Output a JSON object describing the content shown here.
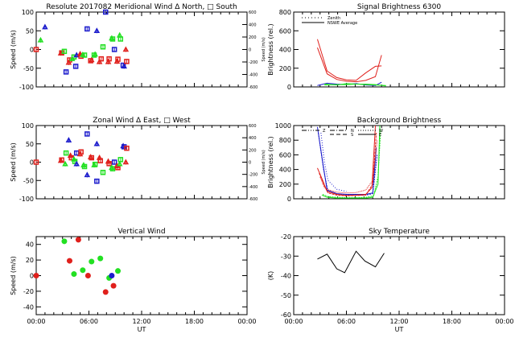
{
  "colors": {
    "red": "#e0201c",
    "green": "#22e022",
    "blue": "#1c1ccc",
    "black": "#000000"
  },
  "chart_data": [
    {
      "id": "meridional",
      "type": "scatter",
      "title": "Resolute   2017082     Meridional Wind   Δ North, □ South",
      "xlabel": "",
      "ylabel": "Speed (m/s)",
      "ylabel_right": "Speed (m/s)",
      "xlim": [
        0,
        24
      ],
      "ylim": [
        -100,
        100
      ],
      "yticks": [
        "100",
        "50",
        "0",
        "-50",
        "-100"
      ],
      "yticks_right": [
        "600",
        "400",
        "200",
        "0",
        "-200",
        "-400",
        "-600"
      ],
      "points": [
        {
          "x": 0.0,
          "y": 0,
          "c": "red",
          "m": "sq"
        },
        {
          "x": 1.0,
          "y": 60,
          "c": "blue",
          "m": "tri"
        },
        {
          "x": 0.5,
          "y": 25,
          "c": "green",
          "m": "tri"
        },
        {
          "x": 2.8,
          "y": -10,
          "c": "red",
          "m": "tri"
        },
        {
          "x": 2.9,
          "y": -9,
          "c": "red",
          "m": "sq"
        },
        {
          "x": 3.2,
          "y": -5,
          "c": "green",
          "m": "sq"
        },
        {
          "x": 3.4,
          "y": -60,
          "c": "blue",
          "m": "sq"
        },
        {
          "x": 3.7,
          "y": -35,
          "c": "red",
          "m": "tri"
        },
        {
          "x": 3.8,
          "y": -28,
          "c": "red",
          "m": "sq"
        },
        {
          "x": 4.1,
          "y": -25,
          "c": "green",
          "m": "tri"
        },
        {
          "x": 4.3,
          "y": -20,
          "c": "green",
          "m": "sq"
        },
        {
          "x": 4.5,
          "y": -45,
          "c": "blue",
          "m": "sq"
        },
        {
          "x": 4.6,
          "y": -15,
          "c": "blue",
          "m": "tri"
        },
        {
          "x": 5.0,
          "y": -12,
          "c": "red",
          "m": "tri"
        },
        {
          "x": 5.1,
          "y": -18,
          "c": "red",
          "m": "sq"
        },
        {
          "x": 5.3,
          "y": -14,
          "c": "green",
          "m": "tri"
        },
        {
          "x": 5.5,
          "y": -15,
          "c": "green",
          "m": "sq"
        },
        {
          "x": 5.8,
          "y": 55,
          "c": "blue",
          "m": "sq"
        },
        {
          "x": 6.2,
          "y": -30,
          "c": "red",
          "m": "sq"
        },
        {
          "x": 6.3,
          "y": -28,
          "c": "red",
          "m": "tri"
        },
        {
          "x": 6.6,
          "y": -15,
          "c": "green",
          "m": "sq"
        },
        {
          "x": 6.7,
          "y": -13,
          "c": "green",
          "m": "tri"
        },
        {
          "x": 6.9,
          "y": 50,
          "c": "blue",
          "m": "tri"
        },
        {
          "x": 7.2,
          "y": -33,
          "c": "red",
          "m": "tri"
        },
        {
          "x": 7.4,
          "y": -25,
          "c": "red",
          "m": "sq"
        },
        {
          "x": 7.6,
          "y": 7,
          "c": "green",
          "m": "sq"
        },
        {
          "x": 7.9,
          "y": 100,
          "c": "blue",
          "m": "sq"
        },
        {
          "x": 8.2,
          "y": -33,
          "c": "red",
          "m": "tri"
        },
        {
          "x": 8.3,
          "y": -25,
          "c": "red",
          "m": "sq"
        },
        {
          "x": 8.6,
          "y": 30,
          "c": "green",
          "m": "tri"
        },
        {
          "x": 8.7,
          "y": 28,
          "c": "green",
          "m": "sq"
        },
        {
          "x": 8.9,
          "y": 0,
          "c": "blue",
          "m": "sq"
        },
        {
          "x": 9.2,
          "y": -32,
          "c": "red",
          "m": "tri"
        },
        {
          "x": 9.3,
          "y": -26,
          "c": "red",
          "m": "sq"
        },
        {
          "x": 9.5,
          "y": 38,
          "c": "green",
          "m": "tri"
        },
        {
          "x": 9.6,
          "y": 28,
          "c": "green",
          "m": "sq"
        },
        {
          "x": 9.9,
          "y": -42,
          "c": "blue",
          "m": "sq"
        },
        {
          "x": 10.0,
          "y": -45,
          "c": "blue",
          "m": "tri"
        },
        {
          "x": 10.2,
          "y": 0,
          "c": "red",
          "m": "tri"
        },
        {
          "x": 10.3,
          "y": -32,
          "c": "red",
          "m": "sq"
        }
      ]
    },
    {
      "id": "signal",
      "type": "line",
      "title": "Signal Brightness      6300",
      "ylabel": "Brightness (rel.)",
      "xlim": [
        0,
        24
      ],
      "ylim": [
        0,
        800
      ],
      "yticks": [
        "800",
        "600",
        "400",
        "200",
        "0"
      ],
      "legend": [
        "Zenith",
        "NSWE Average"
      ],
      "legend_position": "top-left",
      "series": [
        {
          "name": "red-1",
          "c": "red",
          "x": [
            2.7,
            3.8,
            4.9,
            6.0,
            7.1,
            8.2,
            9.3,
            10.0
          ],
          "y": [
            510,
            170,
            100,
            75,
            70,
            150,
            220,
            225
          ]
        },
        {
          "name": "red-2",
          "c": "red",
          "x": [
            2.7,
            3.8,
            4.9,
            6.0,
            7.1,
            8.2,
            9.3,
            10.0
          ],
          "y": [
            420,
            140,
            80,
            60,
            55,
            70,
            110,
            340
          ]
        },
        {
          "name": "blue",
          "c": "blue",
          "x": [
            2.7,
            3.8,
            4.9,
            6.0,
            7.1,
            8.2,
            9.3,
            10.0
          ],
          "y": [
            15,
            40,
            30,
            25,
            35,
            20,
            15,
            50
          ]
        },
        {
          "name": "green-1",
          "c": "green",
          "x": [
            3.5,
            4.9,
            6.0,
            7.1,
            8.2,
            9.3,
            10.5
          ],
          "y": [
            30,
            20,
            35,
            30,
            25,
            20,
            15
          ]
        },
        {
          "name": "green-2",
          "c": "green",
          "x": [
            3.5,
            4.9,
            6.0,
            7.1,
            8.2,
            9.3,
            10.5
          ],
          "y": [
            20,
            25,
            25,
            30,
            30,
            25,
            10
          ]
        }
      ]
    },
    {
      "id": "zonal",
      "type": "scatter",
      "title": "Zonal Wind      Δ East, □ West",
      "ylabel": "Speed (m/s)",
      "ylabel_right": "Speed (m/s)",
      "xlim": [
        0,
        24
      ],
      "ylim": [
        -100,
        100
      ],
      "yticks": [
        "100",
        "50",
        "0",
        "-50",
        "-100"
      ],
      "yticks_right": [
        "600",
        "400",
        "200",
        "0",
        "-200",
        "-400",
        "-600"
      ],
      "points": [
        {
          "x": 0.0,
          "y": 0,
          "c": "red",
          "m": "sq"
        },
        {
          "x": 2.8,
          "y": 4,
          "c": "red",
          "m": "tri"
        },
        {
          "x": 2.9,
          "y": 6,
          "c": "red",
          "m": "sq"
        },
        {
          "x": 3.3,
          "y": -5,
          "c": "green",
          "m": "tri"
        },
        {
          "x": 3.4,
          "y": 25,
          "c": "green",
          "m": "sq"
        },
        {
          "x": 3.7,
          "y": 60,
          "c": "blue",
          "m": "tri"
        },
        {
          "x": 3.9,
          "y": 18,
          "c": "red",
          "m": "tri"
        },
        {
          "x": 4.0,
          "y": 12,
          "c": "red",
          "m": "sq"
        },
        {
          "x": 4.3,
          "y": 8,
          "c": "green",
          "m": "tri"
        },
        {
          "x": 4.4,
          "y": 2,
          "c": "green",
          "m": "sq"
        },
        {
          "x": 4.6,
          "y": -5,
          "c": "blue",
          "m": "tri"
        },
        {
          "x": 4.6,
          "y": 25,
          "c": "blue",
          "m": "sq"
        },
        {
          "x": 5.0,
          "y": 22,
          "c": "red",
          "m": "tri"
        },
        {
          "x": 5.1,
          "y": 28,
          "c": "red",
          "m": "sq"
        },
        {
          "x": 5.4,
          "y": -8,
          "c": "green",
          "m": "tri"
        },
        {
          "x": 5.5,
          "y": -12,
          "c": "green",
          "m": "sq"
        },
        {
          "x": 5.8,
          "y": -35,
          "c": "blue",
          "m": "tri"
        },
        {
          "x": 5.8,
          "y": 77,
          "c": "blue",
          "m": "sq"
        },
        {
          "x": 6.2,
          "y": 14,
          "c": "red",
          "m": "tri"
        },
        {
          "x": 6.3,
          "y": 12,
          "c": "red",
          "m": "sq"
        },
        {
          "x": 6.6,
          "y": -8,
          "c": "green",
          "m": "tri"
        },
        {
          "x": 6.7,
          "y": -6,
          "c": "green",
          "m": "sq"
        },
        {
          "x": 6.9,
          "y": 50,
          "c": "blue",
          "m": "tri"
        },
        {
          "x": 6.9,
          "y": -52,
          "c": "blue",
          "m": "sq"
        },
        {
          "x": 7.2,
          "y": 12,
          "c": "red",
          "m": "tri"
        },
        {
          "x": 7.3,
          "y": 4,
          "c": "red",
          "m": "sq"
        },
        {
          "x": 7.6,
          "y": -28,
          "c": "green",
          "m": "sq"
        },
        {
          "x": 8.2,
          "y": 2,
          "c": "red",
          "m": "tri"
        },
        {
          "x": 8.3,
          "y": -4,
          "c": "red",
          "m": "sq"
        },
        {
          "x": 8.6,
          "y": -15,
          "c": "green",
          "m": "tri"
        },
        {
          "x": 8.7,
          "y": -18,
          "c": "green",
          "m": "sq"
        },
        {
          "x": 8.9,
          "y": 0,
          "c": "blue",
          "m": "sq"
        },
        {
          "x": 9.2,
          "y": -10,
          "c": "red",
          "m": "tri"
        },
        {
          "x": 9.3,
          "y": -15,
          "c": "red",
          "m": "sq"
        },
        {
          "x": 9.5,
          "y": -5,
          "c": "green",
          "m": "tri"
        },
        {
          "x": 9.6,
          "y": 7,
          "c": "green",
          "m": "sq"
        },
        {
          "x": 9.9,
          "y": 44,
          "c": "blue",
          "m": "tri"
        },
        {
          "x": 10.0,
          "y": 42,
          "c": "blue",
          "m": "sq"
        },
        {
          "x": 10.2,
          "y": 0,
          "c": "red",
          "m": "tri"
        },
        {
          "x": 10.3,
          "y": 38,
          "c": "red",
          "m": "sq"
        }
      ]
    },
    {
      "id": "background",
      "type": "line",
      "title": "Background Brightness",
      "ylabel": "Brightness (rel.)",
      "xlim": [
        0,
        24
      ],
      "ylim": [
        0,
        1000
      ],
      "yticks": [
        "1000",
        "800",
        "600",
        "400",
        "200",
        "0"
      ],
      "legend": [
        "Z",
        "N",
        "W",
        "S",
        "E"
      ],
      "legend_position": "top",
      "series": [
        {
          "name": "blue-1",
          "c": "blue",
          "dash": "",
          "x": [
            2.7,
            3.3,
            3.8,
            4.9,
            6.0,
            7.1,
            8.2,
            9.0,
            9.4
          ],
          "y": [
            980,
            500,
            120,
            70,
            60,
            60,
            60,
            80,
            700
          ]
        },
        {
          "name": "blue-2",
          "c": "blue",
          "dash": "2,1",
          "x": [
            2.8,
            3.4,
            3.9,
            4.9,
            6.0,
            7.1,
            8.2,
            9.0,
            9.5
          ],
          "y": [
            900,
            400,
            100,
            60,
            50,
            50,
            50,
            70,
            600
          ]
        },
        {
          "name": "red-1",
          "c": "red",
          "dash": "",
          "x": [
            2.7,
            3.3,
            3.8,
            4.9,
            6.0,
            7.1,
            8.2,
            8.9,
            9.3
          ],
          "y": [
            420,
            250,
            100,
            60,
            45,
            50,
            60,
            150,
            1000
          ]
        },
        {
          "name": "red-2",
          "c": "red",
          "dash": "3,1",
          "x": [
            2.9,
            3.4,
            3.9,
            4.9,
            6.0,
            7.1,
            8.2,
            9.0,
            9.4
          ],
          "y": [
            350,
            200,
            80,
            50,
            40,
            45,
            50,
            200,
            900
          ]
        },
        {
          "name": "red-3",
          "c": "red",
          "dash": "1,1",
          "x": [
            3.0,
            3.5,
            4.0,
            4.9,
            6.0,
            7.1,
            8.2,
            9.0,
            9.5
          ],
          "y": [
            300,
            150,
            120,
            90,
            80,
            85,
            120,
            250,
            800
          ]
        },
        {
          "name": "green-1",
          "c": "green",
          "dash": "",
          "x": [
            3.2,
            3.8,
            4.9,
            6.0,
            7.1,
            8.2,
            9.0,
            9.6,
            9.8
          ],
          "y": [
            50,
            20,
            10,
            10,
            10,
            10,
            20,
            200,
            1000
          ]
        },
        {
          "name": "green-2",
          "c": "green",
          "dash": "2,1",
          "x": [
            3.3,
            3.9,
            4.9,
            6.0,
            7.1,
            8.2,
            9.1,
            9.6,
            9.9
          ],
          "y": [
            60,
            30,
            20,
            15,
            15,
            20,
            40,
            300,
            950
          ]
        },
        {
          "name": "black-dot",
          "c": "blue",
          "dash": "1,2",
          "x": [
            3.1,
            3.5,
            3.9,
            4.9,
            6.0
          ],
          "y": [
            900,
            500,
            250,
            130,
            100
          ]
        }
      ]
    },
    {
      "id": "vertical",
      "type": "scatter",
      "title": "Vertical Wind",
      "xlabel": "UT",
      "ylabel": "Speed (m/s)",
      "xlim": [
        0,
        24
      ],
      "ylim": [
        -50,
        50
      ],
      "yticks": [
        "40",
        "20",
        "0",
        "-20",
        "-40"
      ],
      "xticks": [
        "00:00",
        "06:00",
        "12:00",
        "18:00",
        "00:00"
      ],
      "points": [
        {
          "x": 0.0,
          "y": 0,
          "c": "red"
        },
        {
          "x": 3.2,
          "y": 44,
          "c": "green"
        },
        {
          "x": 3.8,
          "y": 19,
          "c": "red"
        },
        {
          "x": 4.3,
          "y": 2,
          "c": "green"
        },
        {
          "x": 4.8,
          "y": 46,
          "c": "red"
        },
        {
          "x": 5.3,
          "y": 7,
          "c": "green"
        },
        {
          "x": 5.9,
          "y": 0,
          "c": "red"
        },
        {
          "x": 6.3,
          "y": 18,
          "c": "green"
        },
        {
          "x": 7.3,
          "y": 22,
          "c": "green"
        },
        {
          "x": 7.9,
          "y": -21,
          "c": "red"
        },
        {
          "x": 8.3,
          "y": -3,
          "c": "green"
        },
        {
          "x": 8.6,
          "y": 0,
          "c": "blue"
        },
        {
          "x": 8.8,
          "y": -13,
          "c": "red"
        },
        {
          "x": 9.3,
          "y": 6,
          "c": "green"
        }
      ]
    },
    {
      "id": "skytemp",
      "type": "line",
      "title": "Sky Temperature",
      "xlabel": "UT",
      "ylabel": "(K)",
      "xlim": [
        0,
        24
      ],
      "ylim": [
        -60,
        -20
      ],
      "yticks": [
        "-20",
        "-30",
        "-40",
        "-50",
        "-60"
      ],
      "xticks": [
        "00:00",
        "06:00",
        "12:00",
        "18:00",
        "00:00"
      ],
      "series": [
        {
          "name": "sky",
          "c": "black",
          "x": [
            2.7,
            3.8,
            4.9,
            5.8,
            7.1,
            8.1,
            9.3,
            10.3
          ],
          "y": [
            -31.5,
            -29,
            -36.5,
            -38.5,
            -27.5,
            -32.5,
            -35.5,
            -28.5
          ]
        }
      ]
    }
  ]
}
